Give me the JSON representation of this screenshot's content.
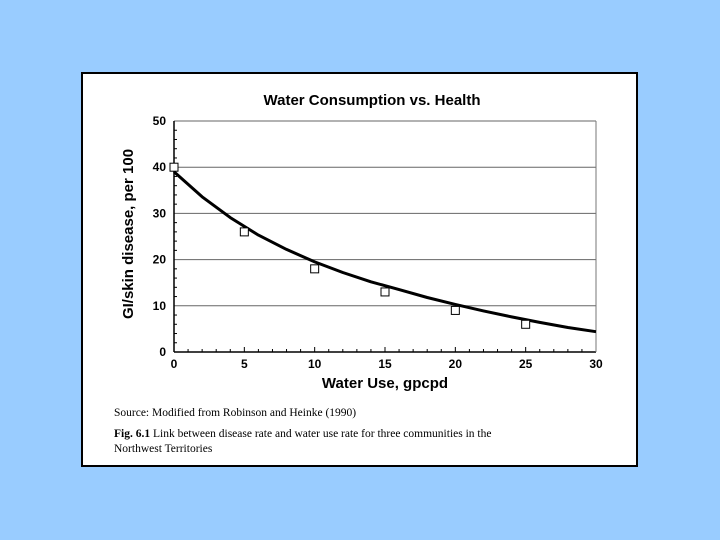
{
  "chart_data": {
    "type": "scatter",
    "title": "Water Consumption vs. Health",
    "xlabel": "Water Use, gpcpd",
    "ylabel": "GI/skin disease, per 100",
    "xlim": [
      0,
      30
    ],
    "ylim": [
      0,
      50
    ],
    "x_ticks": [
      "0",
      "5",
      "10",
      "15",
      "20",
      "25",
      "30"
    ],
    "y_ticks": [
      "0",
      "10",
      "20",
      "30",
      "40",
      "50"
    ],
    "grid": "horizontal",
    "series": [
      {
        "type": "scatter",
        "marker": "square",
        "x": [
          0,
          5,
          10,
          15,
          20,
          25
        ],
        "y": [
          40,
          26,
          18,
          13,
          9,
          6
        ]
      },
      {
        "type": "line",
        "x": [
          0,
          2,
          4,
          6,
          8,
          10,
          12,
          14,
          16,
          18,
          20,
          22,
          24,
          26,
          28,
          30
        ],
        "y": [
          39,
          33.6,
          29.1,
          25.3,
          22.2,
          19.5,
          17.2,
          15.2,
          13.5,
          11.8,
          10.3,
          8.9,
          7.6,
          6.4,
          5.3,
          4.4
        ]
      }
    ]
  },
  "caption": {
    "source_label": "Source:",
    "source_text": "Modified from Robinson and Heinke (1990)",
    "fig_label": "Fig. 6.1",
    "fig_line1": "Link between disease rate and water use rate for three communities in the",
    "fig_line2": "Northwest Territories"
  },
  "colors": {
    "background": "#99ccff",
    "card": "#ffffff",
    "ink": "#000000"
  }
}
